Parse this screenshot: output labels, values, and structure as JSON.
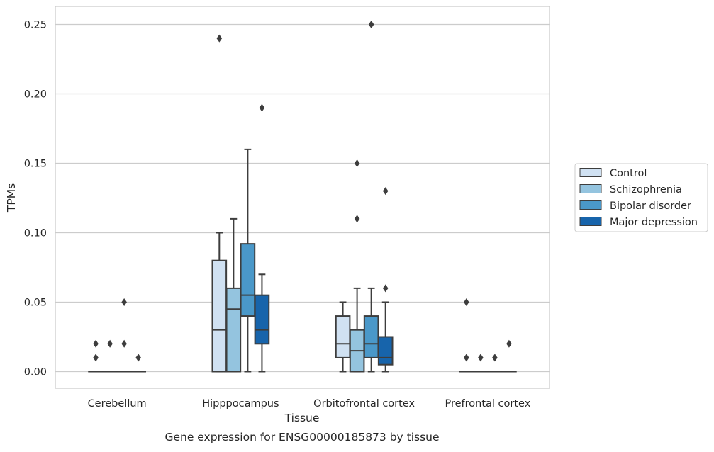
{
  "chart_data": {
    "type": "box",
    "title": "Gene expression for ENSG00000185873 by tissue",
    "xlabel": "Tissue",
    "ylabel": "TPMs",
    "ylim": [
      -0.012,
      0.263
    ],
    "yticks": [
      0.0,
      0.05,
      0.1,
      0.15,
      0.2,
      0.25
    ],
    "ytick_labels": [
      "0.00",
      "0.05",
      "0.10",
      "0.15",
      "0.20",
      "0.25"
    ],
    "grid": true,
    "legend_position": "right",
    "categories": [
      "Cerebellum",
      "Hipppocampus",
      "Orbitofrontal cortex",
      "Prefrontal cortex"
    ],
    "series": [
      {
        "name": "Control",
        "color": "#d0e1f2",
        "boxes": [
          {
            "q1": 0.0,
            "median": 0.0,
            "q3": 0.0,
            "whisker_low": 0.0,
            "whisker_high": 0.0,
            "outliers": [
              0.01,
              0.02
            ]
          },
          {
            "q1": 0.0,
            "median": 0.03,
            "q3": 0.08,
            "whisker_low": 0.0,
            "whisker_high": 0.1,
            "outliers": [
              0.24
            ]
          },
          {
            "q1": 0.01,
            "median": 0.02,
            "q3": 0.04,
            "whisker_low": 0.0,
            "whisker_high": 0.05,
            "outliers": []
          },
          {
            "q1": 0.0,
            "median": 0.0,
            "q3": 0.0,
            "whisker_low": 0.0,
            "whisker_high": 0.0,
            "outliers": [
              0.01,
              0.05
            ]
          }
        ]
      },
      {
        "name": "Schizophrenia",
        "color": "#94c4df",
        "boxes": [
          {
            "q1": 0.0,
            "median": 0.0,
            "q3": 0.0,
            "whisker_low": 0.0,
            "whisker_high": 0.0,
            "outliers": [
              0.02
            ]
          },
          {
            "q1": 0.0,
            "median": 0.045,
            "q3": 0.06,
            "whisker_low": 0.0,
            "whisker_high": 0.11,
            "outliers": []
          },
          {
            "q1": 0.0,
            "median": 0.015,
            "q3": 0.03,
            "whisker_low": 0.0,
            "whisker_high": 0.06,
            "outliers": [
              0.11,
              0.15
            ]
          },
          {
            "q1": 0.0,
            "median": 0.0,
            "q3": 0.0,
            "whisker_low": 0.0,
            "whisker_high": 0.0,
            "outliers": [
              0.01
            ]
          }
        ]
      },
      {
        "name": "Bipolar disorder",
        "color": "#4a98c9",
        "boxes": [
          {
            "q1": 0.0,
            "median": 0.0,
            "q3": 0.0,
            "whisker_low": 0.0,
            "whisker_high": 0.0,
            "outliers": [
              0.02,
              0.05
            ]
          },
          {
            "q1": 0.04,
            "median": 0.055,
            "q3": 0.092,
            "whisker_low": 0.0,
            "whisker_high": 0.16,
            "outliers": []
          },
          {
            "q1": 0.01,
            "median": 0.02,
            "q3": 0.04,
            "whisker_low": 0.0,
            "whisker_high": 0.06,
            "outliers": [
              0.25
            ]
          },
          {
            "q1": 0.0,
            "median": 0.0,
            "q3": 0.0,
            "whisker_low": 0.0,
            "whisker_high": 0.0,
            "outliers": [
              0.01
            ]
          }
        ]
      },
      {
        "name": "Major depression",
        "color": "#1764ab",
        "boxes": [
          {
            "q1": 0.0,
            "median": 0.0,
            "q3": 0.0,
            "whisker_low": 0.0,
            "whisker_high": 0.0,
            "outliers": [
              0.01
            ]
          },
          {
            "q1": 0.02,
            "median": 0.03,
            "q3": 0.055,
            "whisker_low": 0.0,
            "whisker_high": 0.07,
            "outliers": [
              0.19
            ]
          },
          {
            "q1": 0.005,
            "median": 0.01,
            "q3": 0.025,
            "whisker_low": 0.0,
            "whisker_high": 0.05,
            "outliers": [
              0.06,
              0.13
            ]
          },
          {
            "q1": 0.0,
            "median": 0.0,
            "q3": 0.0,
            "whisker_low": 0.0,
            "whisker_high": 0.0,
            "outliers": [
              0.02
            ]
          }
        ]
      }
    ]
  }
}
